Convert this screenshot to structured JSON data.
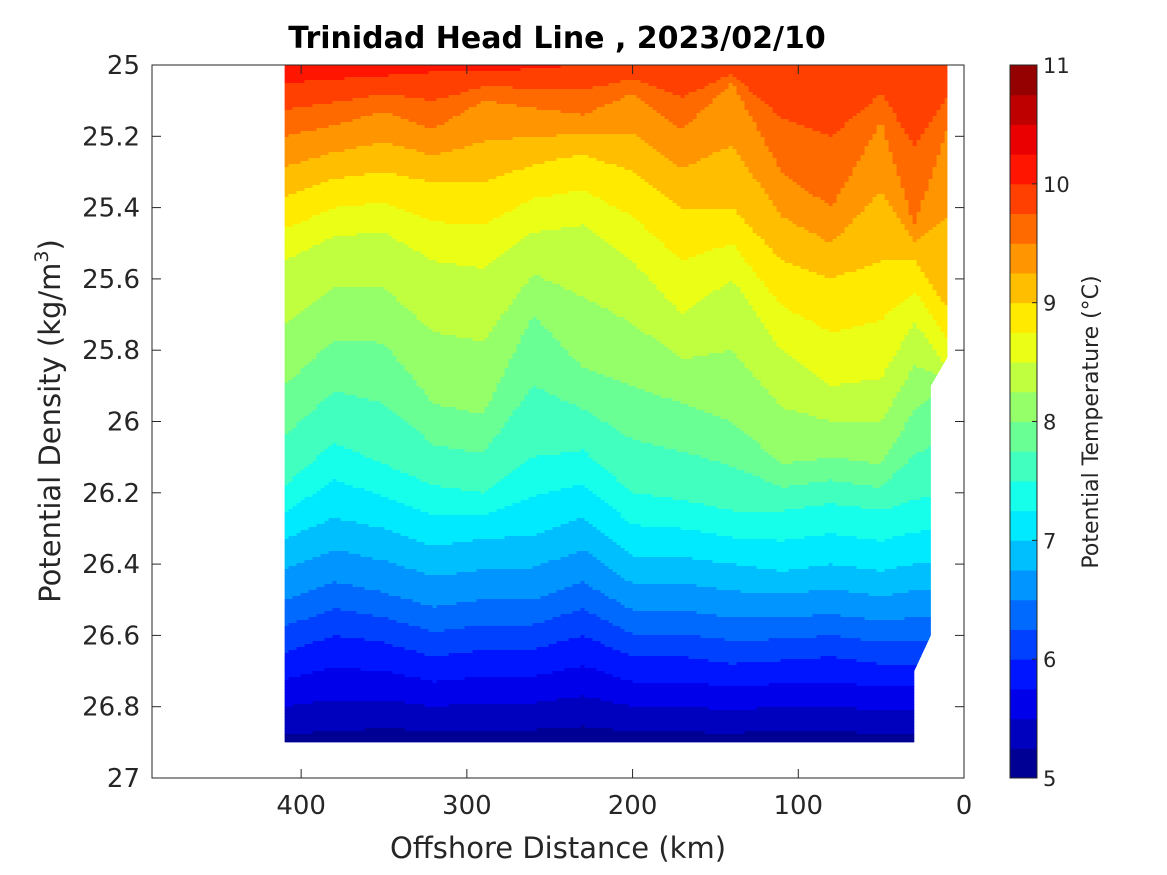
{
  "chart_data": {
    "type": "heatmap",
    "subtype": "filled-contour",
    "title": "Trinidad Head Line , 2023/02/10",
    "xlabel": "Offshore Distance (km)",
    "ylabel_prefix": "Potential Density (kg/m",
    "ylabel_sup": "3",
    "ylabel_suffix": ")",
    "colorbar_label": "Potential Temperature (°C)",
    "x_reversed": true,
    "y_reversed": true,
    "xlim": [
      490,
      0
    ],
    "ylim": [
      27,
      25
    ],
    "xticks": [
      400,
      300,
      200,
      100,
      0
    ],
    "yticks": [
      25,
      25.2,
      25.4,
      25.6,
      25.8,
      26,
      26.2,
      26.4,
      26.6,
      26.8,
      27
    ],
    "colorbar": {
      "min": 5,
      "max": 11,
      "step": 0.25,
      "ticks": [
        5,
        6,
        7,
        8,
        9,
        10,
        11
      ]
    },
    "colormap": "jet",
    "grid": false,
    "data_x_km": [
      410,
      380,
      350,
      320,
      290,
      260,
      230,
      200,
      170,
      140,
      110,
      80,
      50,
      30,
      10
    ],
    "isotherms": [
      {
        "temp": 10.0,
        "density": [
          25.05,
          25.04,
          25.03,
          25.02,
          25.02,
          25.01,
          25.0,
          25.0,
          25.0,
          25.0,
          25.0,
          25.0,
          25.0,
          25.0,
          25.0
        ]
      },
      {
        "temp": 9.5,
        "density": [
          25.2,
          25.17,
          25.13,
          25.18,
          25.1,
          25.12,
          25.14,
          25.08,
          25.18,
          25.05,
          25.3,
          25.4,
          25.16,
          25.45,
          25.18
        ]
      },
      {
        "temp": 9.0,
        "density": [
          25.37,
          25.32,
          25.3,
          25.33,
          25.33,
          25.28,
          25.25,
          25.3,
          25.4,
          25.4,
          25.55,
          25.6,
          25.55,
          25.55,
          25.68
        ]
      },
      {
        "temp": 8.5,
        "density": [
          25.55,
          25.48,
          25.47,
          25.55,
          25.57,
          25.47,
          25.45,
          25.55,
          25.7,
          25.6,
          25.8,
          25.9,
          25.88,
          25.72,
          25.85
        ]
      },
      {
        "temp": 8.0,
        "density": [
          25.9,
          25.77,
          25.78,
          25.95,
          25.98,
          25.7,
          25.85,
          25.9,
          25.95,
          26.0,
          26.12,
          26.1,
          26.12,
          25.97,
          25.9
        ]
      },
      {
        "temp": 7.5,
        "density": [
          26.18,
          26.06,
          26.12,
          26.18,
          26.2,
          26.1,
          26.08,
          26.2,
          26.22,
          26.25,
          26.25,
          26.23,
          26.25,
          26.22,
          26.2
        ]
      },
      {
        "temp": 7.0,
        "density": [
          26.33,
          26.27,
          26.3,
          26.35,
          26.33,
          26.32,
          26.27,
          26.38,
          26.38,
          26.4,
          26.42,
          26.4,
          26.42,
          26.4,
          26.4
        ]
      },
      {
        "temp": 6.5,
        "density": [
          26.5,
          26.45,
          26.48,
          26.52,
          26.5,
          26.5,
          26.45,
          26.53,
          26.53,
          26.55,
          26.55,
          26.54,
          26.56,
          26.55,
          26.55
        ]
      },
      {
        "temp": 6.0,
        "density": [
          26.65,
          26.6,
          26.62,
          26.66,
          26.64,
          26.64,
          26.6,
          26.66,
          26.66,
          26.68,
          26.67,
          26.66,
          26.68,
          26.68,
          26.68
        ]
      },
      {
        "temp": 5.5,
        "density": [
          26.8,
          26.78,
          26.78,
          26.8,
          26.79,
          26.79,
          26.77,
          26.8,
          26.8,
          26.81,
          26.8,
          26.8,
          26.81,
          26.81,
          26.81
        ]
      }
    ],
    "region_boundary": {
      "left_x": 410,
      "top_density": 25,
      "bottom_density": 26.9,
      "right_edge": [
        {
          "x": 10,
          "density": 25
        },
        {
          "x": 10,
          "density": 25.82
        },
        {
          "x": 20,
          "density": 25.9
        },
        {
          "x": 20,
          "density": 26.6
        },
        {
          "x": 30,
          "density": 26.7
        },
        {
          "x": 30,
          "density": 26.9
        }
      ]
    }
  }
}
